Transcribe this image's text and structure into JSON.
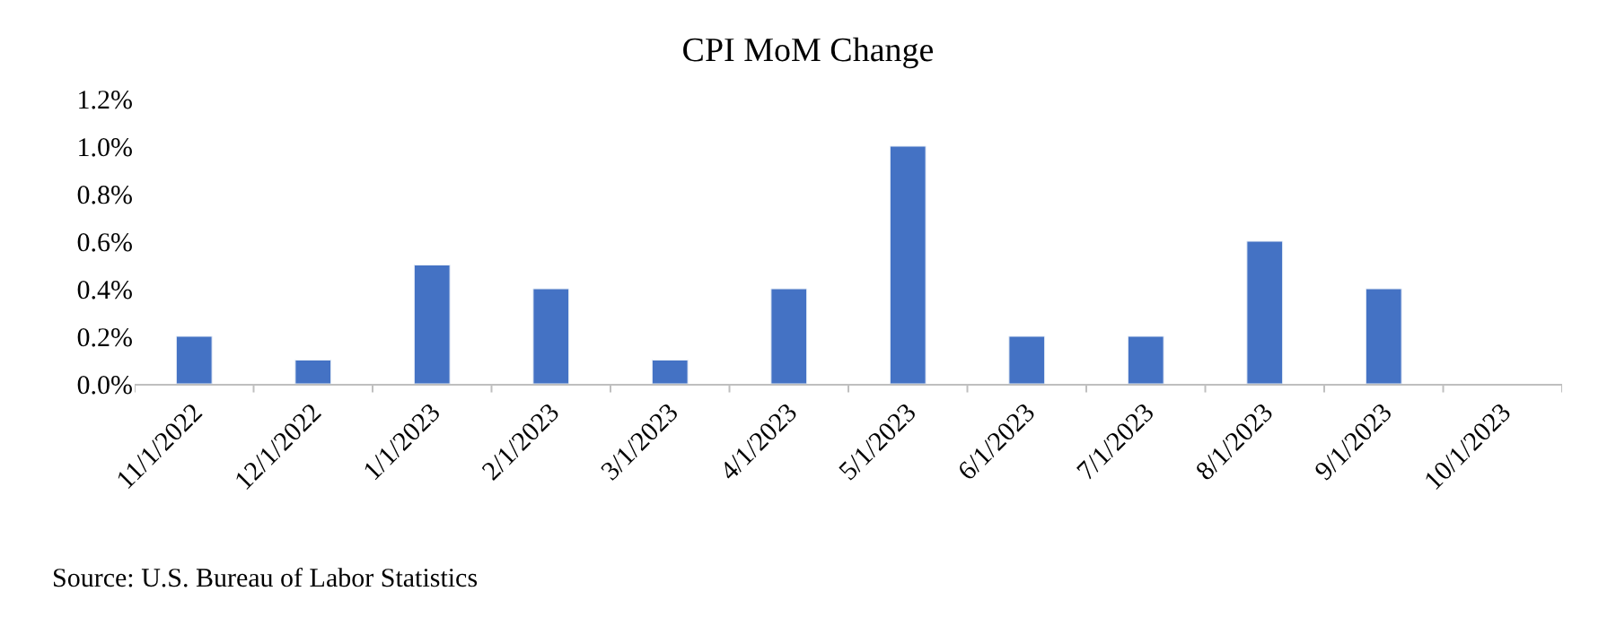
{
  "chart_data": {
    "type": "bar",
    "title": "CPI MoM Change",
    "categories": [
      "11/1/2022",
      "12/1/2022",
      "1/1/2023",
      "2/1/2023",
      "3/1/2023",
      "4/1/2023",
      "5/1/2023",
      "6/1/2023",
      "7/1/2023",
      "8/1/2023",
      "9/1/2023",
      "10/1/2023"
    ],
    "values": [
      0.2,
      0.1,
      0.5,
      0.4,
      0.1,
      0.4,
      1.0,
      0.2,
      0.2,
      0.6,
      0.4,
      null
    ],
    "color": "#4472c4",
    "ylim": [
      0,
      1.2
    ],
    "yticks": [
      {
        "value": 0,
        "label": "0.0%"
      },
      {
        "value": 0.2,
        "label": "0.2%"
      },
      {
        "value": 0.4,
        "label": "0.4%"
      },
      {
        "value": 0.6,
        "label": "0.6%"
      },
      {
        "value": 0.8,
        "label": "0.8%"
      },
      {
        "value": 1.0,
        "label": "1.0%"
      },
      {
        "value": 1.2,
        "label": "1.2%"
      }
    ],
    "annotations": [
      "Source: U.S. Bureau of Labor Statistics"
    ]
  }
}
